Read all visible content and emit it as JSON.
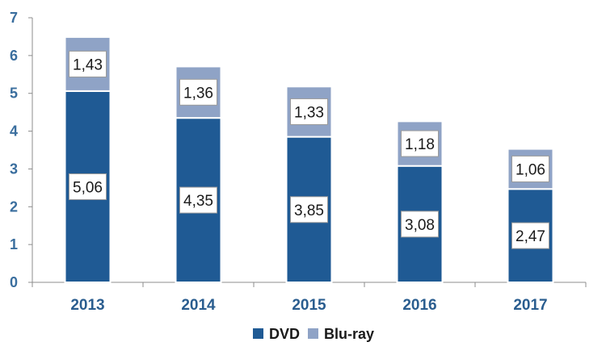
{
  "chart_data": {
    "type": "bar",
    "stacked": true,
    "categories": [
      "2013",
      "2014",
      "2015",
      "2016",
      "2017"
    ],
    "series": [
      {
        "name": "DVD",
        "values": [
          5.06,
          4.35,
          3.85,
          3.08,
          2.47
        ],
        "labels": [
          "5,06",
          "4,35",
          "3,85",
          "3,08",
          "2,47"
        ],
        "color": "#1f5a94"
      },
      {
        "name": "Blu-ray",
        "values": [
          1.43,
          1.36,
          1.33,
          1.18,
          1.06
        ],
        "labels": [
          "1,43",
          "1,36",
          "1,33",
          "1,18",
          "1,06"
        ],
        "color": "#8fa3c6"
      }
    ],
    "yticks": [
      "0",
      "1",
      "2",
      "3",
      "4",
      "5",
      "6",
      "7"
    ],
    "ylim": [
      0,
      7
    ],
    "grid": false,
    "legend_position": "bottom"
  }
}
